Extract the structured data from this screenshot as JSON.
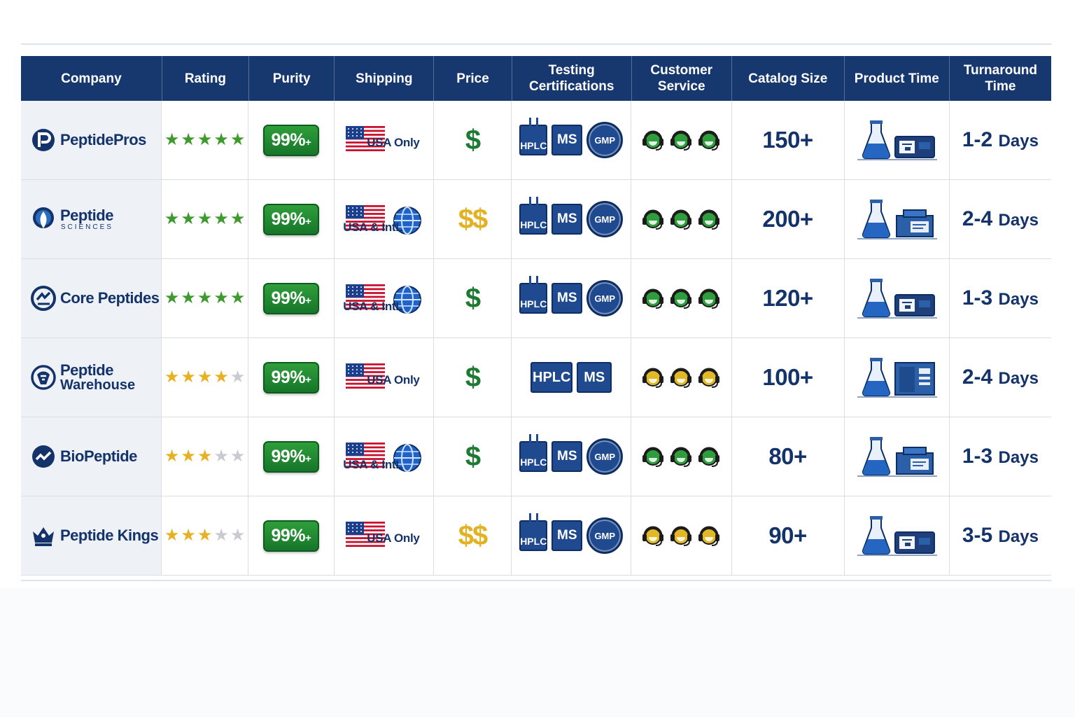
{
  "header": {
    "company": "Company",
    "rating": "Rating",
    "purity": "Purity",
    "shipping": "Shipping",
    "price": "Price",
    "testing": "Testing Certifications",
    "customer_service": "Customer Service",
    "catalog_size": "Catalog Size",
    "product_time": "Product Time",
    "turnaround": "Turnaround Time"
  },
  "rows": [
    {
      "company": "PeptidePros",
      "company_sub": "",
      "rating_stars": 5,
      "rating_color": "#3e9a2e",
      "purity": "99%",
      "purity_suffix": "+",
      "shipping": "USA Only",
      "shipping_type": "usa",
      "price": "$",
      "price_color": "#1e7a33",
      "tests": [
        "HPLC",
        "MS",
        "GMP"
      ],
      "service_color": "#2e9d3c",
      "catalog": "150+",
      "product_icon": "flask-and-machine",
      "turnaround_num": "1-2",
      "turnaround_unit": "Days"
    },
    {
      "company": "Peptide",
      "company_sub": "SCIENCES",
      "rating_stars": 5,
      "rating_color": "#3e9a2e",
      "purity": "99%",
      "purity_suffix": "+",
      "shipping": "USA & IntL",
      "shipping_type": "intl",
      "price": "$$",
      "price_color": "#e3b223",
      "tests": [
        "HPLC",
        "MS",
        "GMP"
      ],
      "service_color": "#2e9d3c",
      "catalog": "200+",
      "product_icon": "flask-and-box",
      "turnaround_num": "2-4",
      "turnaround_unit": "Days"
    },
    {
      "company": "Core Peptides",
      "company_sub": "",
      "rating_stars": 5,
      "rating_color": "#3e9a2e",
      "purity": "99%",
      "purity_suffix": "+",
      "shipping": "USA & IntL",
      "shipping_type": "intl",
      "price": "$",
      "price_color": "#1e7a33",
      "tests": [
        "HPLC",
        "MS",
        "GMP"
      ],
      "service_color": "#2e9d3c",
      "catalog": "120+",
      "product_icon": "flask-and-machine",
      "turnaround_num": "1-3",
      "turnaround_unit": "Days"
    },
    {
      "company": "Peptide",
      "company_sub": "Warehouse",
      "rating_stars": 4,
      "rating_color": "#e8b123",
      "purity": "99%",
      "purity_suffix": "+",
      "shipping": "USA Only",
      "shipping_type": "usa",
      "price": "$",
      "price_color": "#1e7a33",
      "tests": [
        "HPLC",
        "MS"
      ],
      "service_color": "#e3b827",
      "catalog": "100+",
      "product_icon": "flask-and-fridge",
      "turnaround_num": "2-4",
      "turnaround_unit": "Days"
    },
    {
      "company": "BioPeptide",
      "company_sub": "",
      "rating_stars": 3,
      "rating_color": "#e8b123",
      "purity": "99%",
      "purity_suffix": "+",
      "shipping": "USA & IntL",
      "shipping_type": "intl",
      "price": "$",
      "price_color": "#1e7a33",
      "tests": [
        "HPLC",
        "MS",
        "GMP"
      ],
      "service_color": "#2e9d3c",
      "catalog": "80+",
      "product_icon": "flask-and-box",
      "turnaround_num": "1-3",
      "turnaround_unit": "Days"
    },
    {
      "company": "Peptide Kings",
      "company_sub": "",
      "rating_stars": 3,
      "rating_color": "#e8b123",
      "purity": "99%",
      "purity_suffix": "+",
      "shipping": "USA Only",
      "shipping_type": "usa",
      "price": "$$",
      "price_color": "#e3b223",
      "tests": [
        "HPLC",
        "MS",
        "GMP"
      ],
      "service_color": "#e3b827",
      "catalog": "90+",
      "product_icon": "flask-and-machine",
      "turnaround_num": "3-5",
      "turnaround_unit": "Days"
    }
  ]
}
